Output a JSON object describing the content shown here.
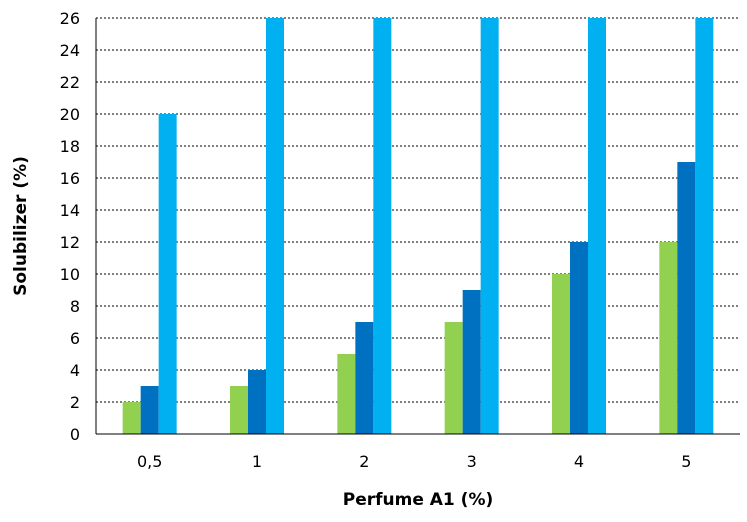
{
  "chart_data": {
    "type": "bar",
    "title": "",
    "xlabel": "Perfume A1 (%)",
    "ylabel": "Solubilizer (%)",
    "categories": [
      "0,5",
      "1",
      "2",
      "3",
      "4",
      "5"
    ],
    "ylim": [
      0,
      26
    ],
    "ytick_step": 2,
    "grid": true,
    "grid_style": "dashed",
    "legend": "none",
    "series": [
      {
        "color": "#92d050",
        "values": [
          2,
          3,
          5,
          7,
          10,
          12
        ]
      },
      {
        "color": "#0070c0",
        "values": [
          3,
          4,
          7,
          9,
          12,
          17
        ]
      },
      {
        "color": "#00b0f0",
        "values": [
          20,
          26,
          26,
          26,
          26,
          26
        ]
      }
    ]
  }
}
